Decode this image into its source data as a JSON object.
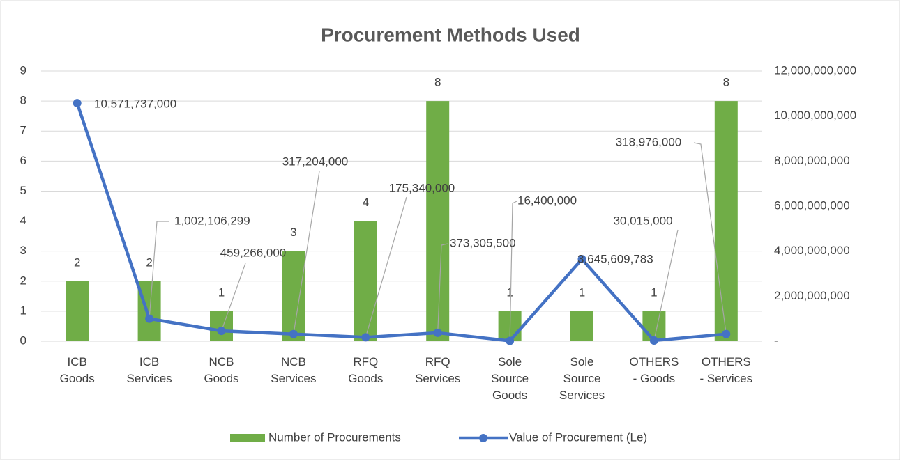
{
  "chart_data": {
    "type": "bar-line",
    "title": "Procurement Methods Used",
    "categories": [
      "ICB Goods",
      "ICB Services",
      "NCB Goods",
      "NCB Services",
      "RFQ Goods",
      "RFQ Services",
      "Sole Source Goods",
      "Sole Source Services",
      "OTHERS - Goods",
      "OTHERS - Services"
    ],
    "series": [
      {
        "name": "Number of Procurements",
        "type": "bar",
        "color": "#70ad47",
        "values": [
          2,
          2,
          1,
          3,
          4,
          8,
          1,
          1,
          1,
          8
        ]
      },
      {
        "name": "Value of Procurement (Le)",
        "type": "line",
        "axis": "y2",
        "color": "#4472c4",
        "values": [
          10571737000,
          1002106299,
          459266000,
          317204000,
          175340000,
          373305500,
          16400000,
          3645609783,
          30015000,
          318976000
        ],
        "value_labels": [
          "10,571,737,000",
          "1,002,106,299",
          "459,266,000",
          "317,204,000",
          "175,340,000",
          "373,305,500",
          "16,400,000",
          "3,645,609,783",
          "30,015,000",
          "318,976,000"
        ]
      }
    ],
    "ylim": [
      0,
      9
    ],
    "yticks": [
      0,
      1,
      2,
      3,
      4,
      5,
      6,
      7,
      8,
      9
    ],
    "y2lim": [
      0,
      12000000000
    ],
    "y2ticks": [
      {
        "value": 0,
        "label": "-"
      },
      {
        "value": 2000000000,
        "label": "2,000,000,000"
      },
      {
        "value": 4000000000,
        "label": "4,000,000,000"
      },
      {
        "value": 6000000000,
        "label": "6,000,000,000"
      },
      {
        "value": 8000000000,
        "label": "8,000,000,000"
      },
      {
        "value": 10000000000,
        "label": "10,000,000,000"
      },
      {
        "value": 12000000000,
        "label": "12,000,000,000"
      }
    ],
    "grid": true,
    "legend": "bottom"
  }
}
